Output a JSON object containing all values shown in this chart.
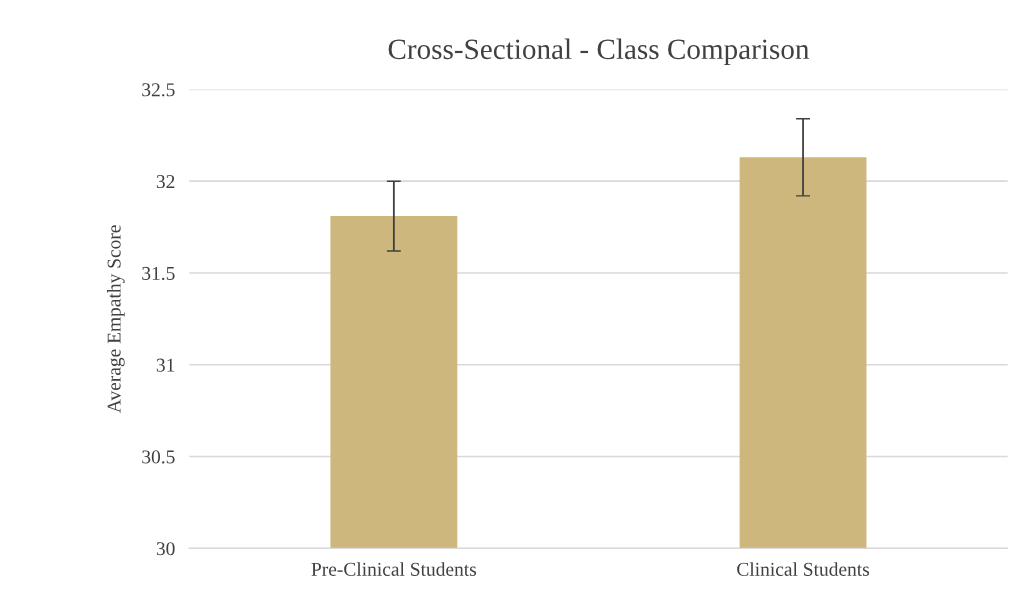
{
  "chart_data": {
    "type": "bar",
    "title": "Cross-Sectional - Class Comparison",
    "ylabel": "Average Empathy Score",
    "categories": [
      "Pre-Clinical Students",
      "Clinical Students"
    ],
    "values": [
      31.81,
      32.13
    ],
    "errors": [
      0.19,
      0.21
    ],
    "color": "#cdb77c",
    "ylim": [
      30,
      32.5
    ],
    "yticks": [
      30,
      30.5,
      31,
      31.5,
      32,
      32.5
    ],
    "grid": "y"
  }
}
